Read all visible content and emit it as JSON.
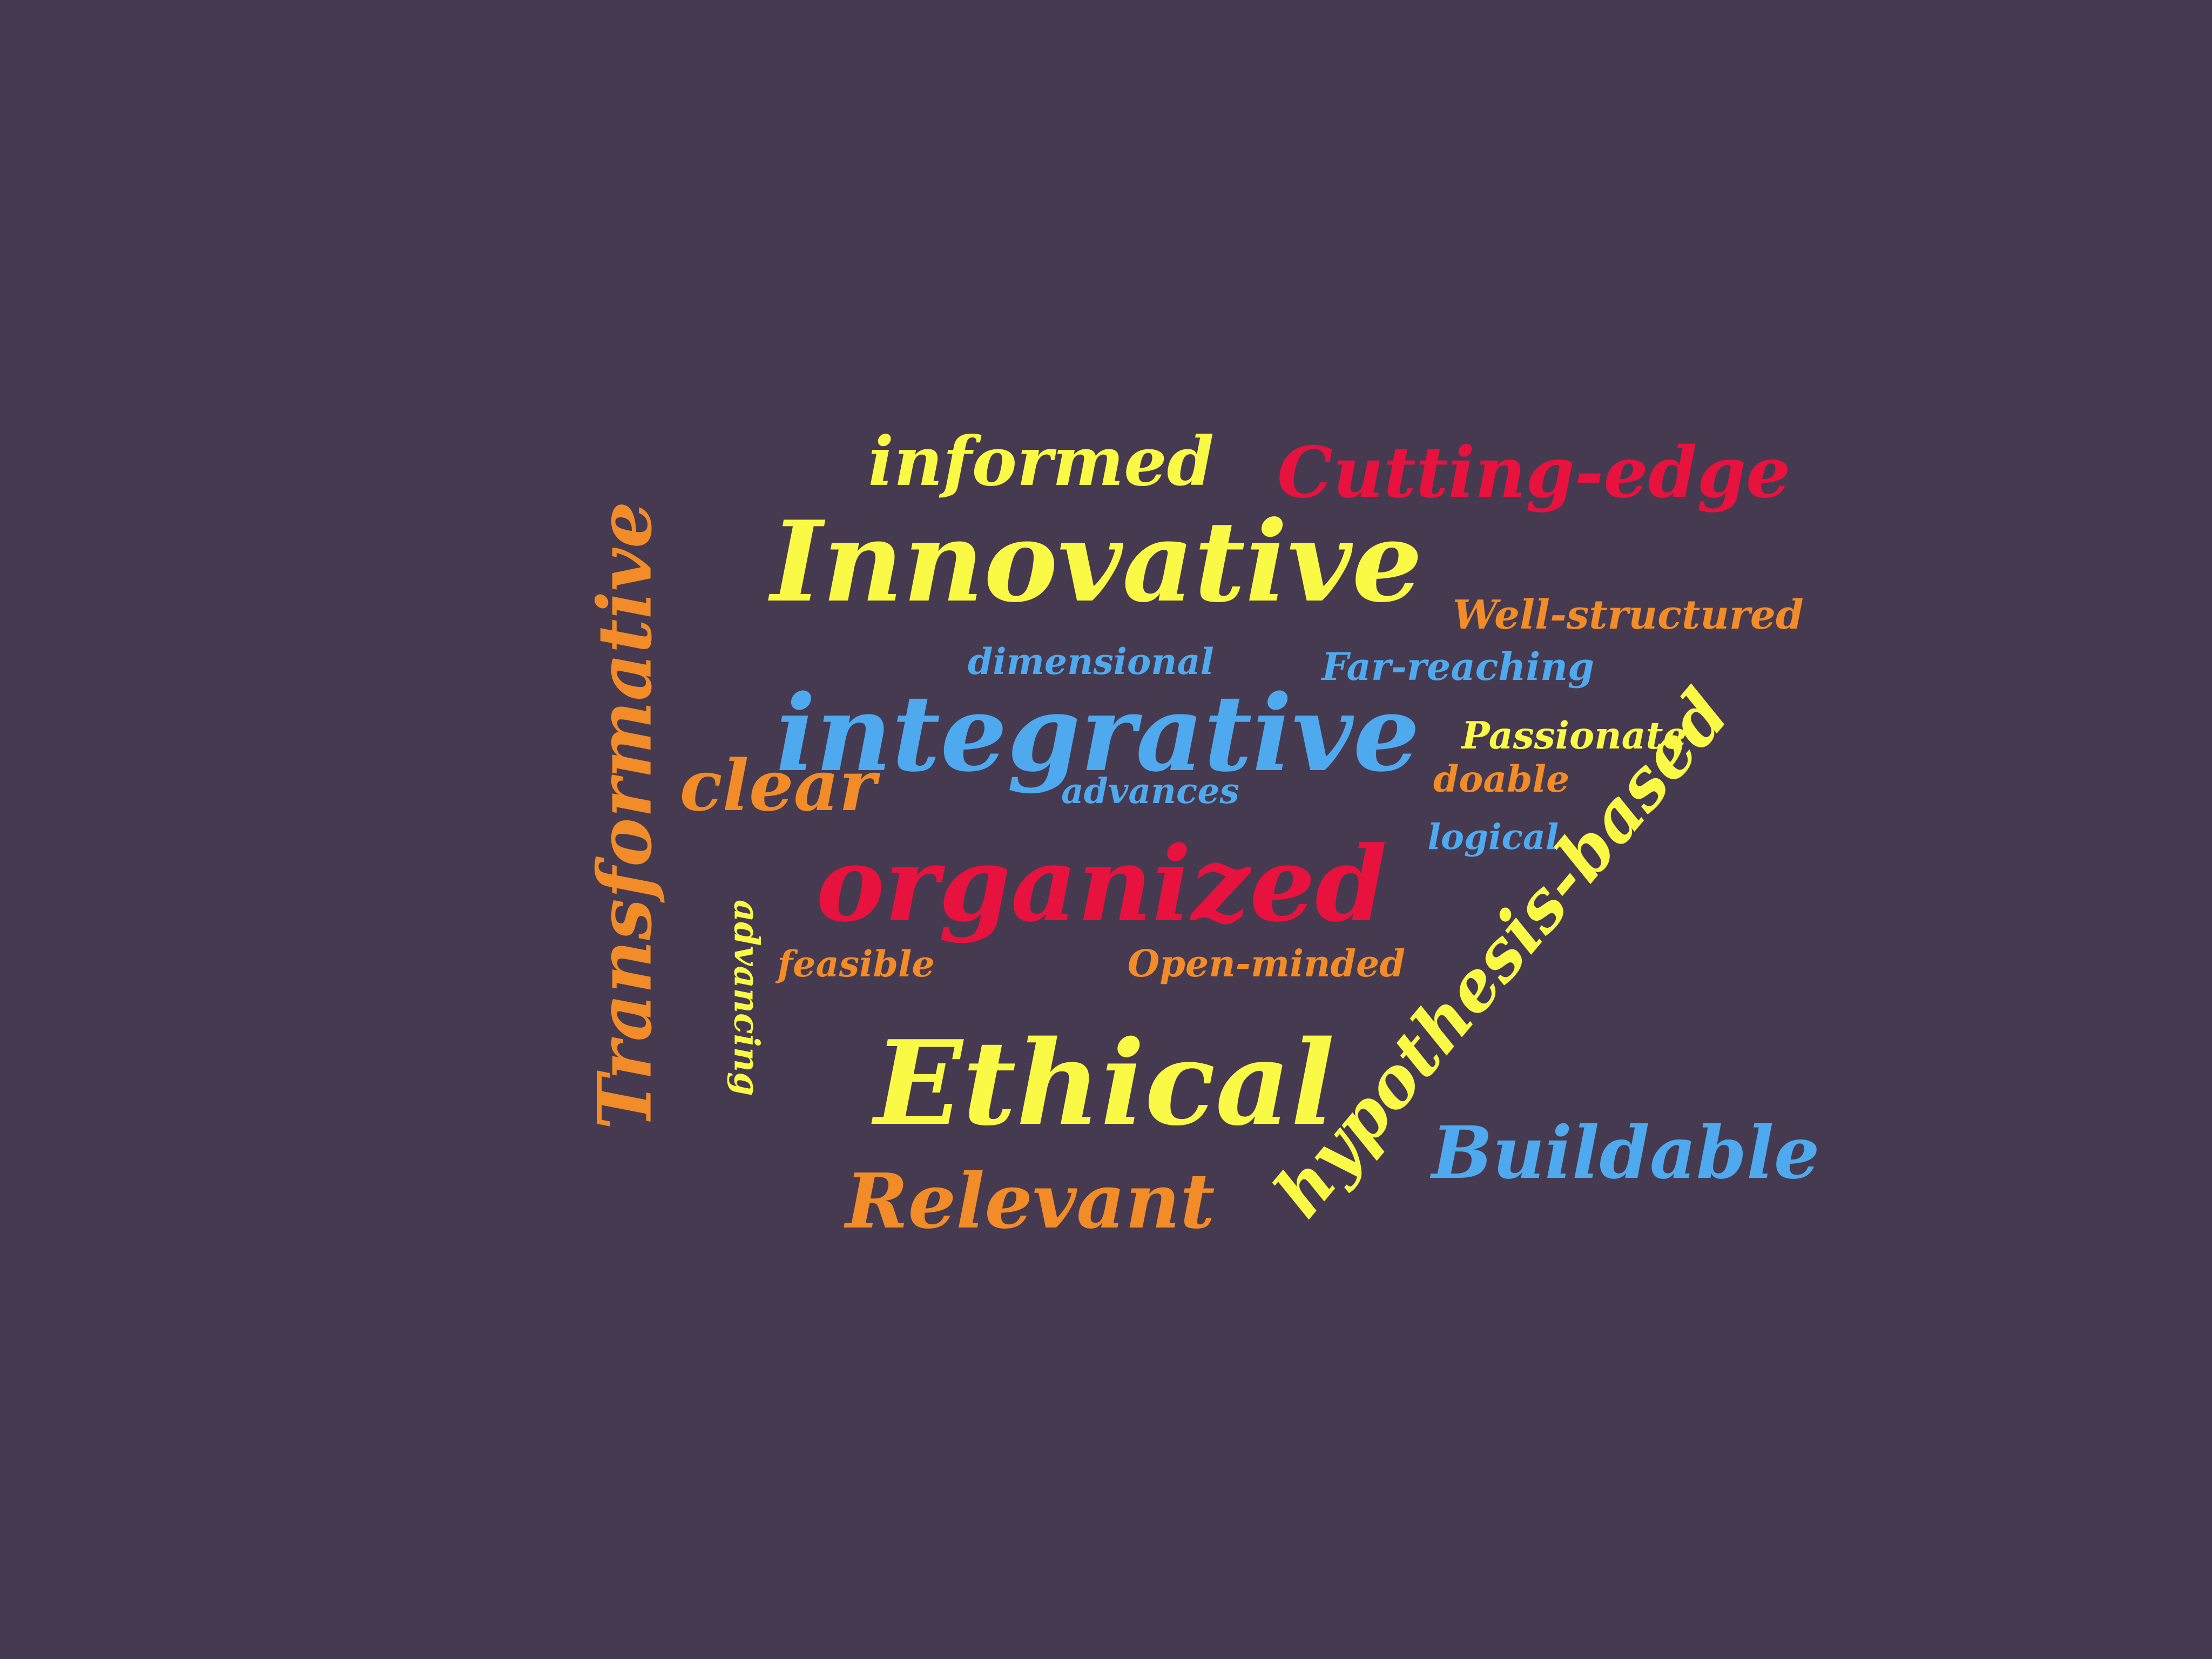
{
  "palette": {
    "background": "#463a50",
    "yellow": "#fafa46",
    "red": "#e8123f",
    "blue": "#4fa9ee",
    "orange": "#f28c28"
  },
  "words": [
    {
      "id": "informed",
      "text": "informed",
      "color": "yellow"
    },
    {
      "id": "cutting-edge",
      "text": "Cutting-edge",
      "color": "red"
    },
    {
      "id": "innovative",
      "text": "Innovative",
      "color": "yellow"
    },
    {
      "id": "well-structured",
      "text": "Well-structured",
      "color": "orange"
    },
    {
      "id": "dimensional",
      "text": "dimensional",
      "color": "blue"
    },
    {
      "id": "far-reaching",
      "text": "Far-reaching",
      "color": "blue"
    },
    {
      "id": "integrative",
      "text": "integrative",
      "color": "blue"
    },
    {
      "id": "passionate",
      "text": "Passionate",
      "color": "yellow"
    },
    {
      "id": "clear",
      "text": "clear",
      "color": "orange"
    },
    {
      "id": "advances",
      "text": "advances",
      "color": "blue"
    },
    {
      "id": "doable",
      "text": "doable",
      "color": "orange"
    },
    {
      "id": "logical",
      "text": "logical",
      "color": "blue"
    },
    {
      "id": "organized",
      "text": "organized",
      "color": "red"
    },
    {
      "id": "transformative",
      "text": "Transformative",
      "color": "orange"
    },
    {
      "id": "advancing",
      "text": "advancing",
      "color": "yellow"
    },
    {
      "id": "feasible",
      "text": "feasible",
      "color": "orange"
    },
    {
      "id": "open-minded",
      "text": "Open-minded",
      "color": "orange"
    },
    {
      "id": "hypothesis-based",
      "text": "hypothesis-based",
      "color": "yellow"
    },
    {
      "id": "ethical",
      "text": "Ethical",
      "color": "yellow"
    },
    {
      "id": "buildable",
      "text": "Buildable",
      "color": "blue"
    },
    {
      "id": "relevant",
      "text": "Relevant",
      "color": "orange"
    }
  ]
}
